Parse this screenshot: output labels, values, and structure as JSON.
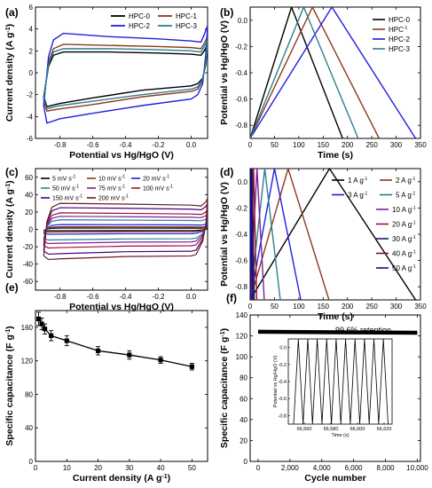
{
  "chart_data": [
    {
      "panel": "(a)",
      "type": "line",
      "xlabel": "Potential vs Hg/HgO (V)",
      "ylabel": "Current density (A g-1)",
      "xlim": [
        -0.95,
        0.1
      ],
      "ylim": [
        -6,
        6
      ],
      "xticks": [
        -0.8,
        -0.6,
        -0.4,
        -0.2,
        0.0
      ],
      "yticks": [
        -6,
        -4,
        -2,
        0,
        2,
        4,
        6
      ],
      "legend_position": "top-right",
      "series": [
        {
          "name": "HPC-0",
          "color": "#000000",
          "upper": [
            [
              -0.9,
              -2.2
            ],
            [
              -0.87,
              0.6
            ],
            [
              -0.84,
              1.6
            ],
            [
              -0.78,
              1.9
            ],
            [
              -0.5,
              1.9
            ],
            [
              -0.2,
              1.8
            ],
            [
              0.0,
              1.7
            ],
            [
              0.06,
              1.6
            ],
            [
              0.08,
              2.0
            ],
            [
              0.1,
              2.6
            ]
          ],
          "lower": [
            [
              0.1,
              2.6
            ],
            [
              0.09,
              0.8
            ],
            [
              0.07,
              -0.5
            ],
            [
              0.04,
              -1.0
            ],
            [
              0.0,
              -1.2
            ],
            [
              -0.3,
              -1.6
            ],
            [
              -0.6,
              -2.3
            ],
            [
              -0.8,
              -2.8
            ],
            [
              -0.88,
              -3.1
            ],
            [
              -0.9,
              -2.2
            ]
          ]
        },
        {
          "name": "HPC-1",
          "color": "#8b3a1e",
          "upper": [
            [
              -0.9,
              -2.6
            ],
            [
              -0.87,
              1.0
            ],
            [
              -0.84,
              2.2
            ],
            [
              -0.78,
              2.6
            ],
            [
              -0.5,
              2.5
            ],
            [
              -0.2,
              2.4
            ],
            [
              0.0,
              2.3
            ],
            [
              0.06,
              2.2
            ],
            [
              0.08,
              2.7
            ],
            [
              0.1,
              3.3
            ]
          ],
          "lower": [
            [
              0.1,
              3.3
            ],
            [
              0.09,
              1.2
            ],
            [
              0.07,
              -0.7
            ],
            [
              0.04,
              -1.5
            ],
            [
              0.0,
              -1.7
            ],
            [
              -0.3,
              -2.2
            ],
            [
              -0.6,
              -2.9
            ],
            [
              -0.8,
              -3.3
            ],
            [
              -0.88,
              -3.5
            ],
            [
              -0.9,
              -2.6
            ]
          ]
        },
        {
          "name": "HPC-2",
          "color": "#1f1fe0",
          "upper": [
            [
              -0.9,
              -3.0
            ],
            [
              -0.87,
              1.5
            ],
            [
              -0.84,
              3.0
            ],
            [
              -0.78,
              3.6
            ],
            [
              -0.5,
              3.3
            ],
            [
              -0.2,
              3.1
            ],
            [
              0.0,
              2.9
            ],
            [
              0.06,
              2.8
            ],
            [
              0.08,
              3.5
            ],
            [
              0.1,
              4.3
            ]
          ],
          "lower": [
            [
              0.1,
              4.3
            ],
            [
              0.09,
              1.8
            ],
            [
              0.07,
              -1.0
            ],
            [
              0.04,
              -2.0
            ],
            [
              0.0,
              -2.4
            ],
            [
              -0.3,
              -3.0
            ],
            [
              -0.6,
              -3.7
            ],
            [
              -0.8,
              -4.2
            ],
            [
              -0.88,
              -4.6
            ],
            [
              -0.9,
              -3.0
            ]
          ]
        },
        {
          "name": "HPC-3",
          "color": "#2e7f8c",
          "upper": [
            [
              -0.9,
              -2.4
            ],
            [
              -0.87,
              0.8
            ],
            [
              -0.84,
              1.9
            ],
            [
              -0.78,
              2.2
            ],
            [
              -0.5,
              2.2
            ],
            [
              -0.2,
              2.1
            ],
            [
              0.0,
              2.0
            ],
            [
              0.06,
              1.9
            ],
            [
              0.08,
              2.4
            ],
            [
              0.1,
              3.0
            ]
          ],
          "lower": [
            [
              0.1,
              3.0
            ],
            [
              0.09,
              1.0
            ],
            [
              0.07,
              -0.6
            ],
            [
              0.04,
              -1.3
            ],
            [
              0.0,
              -1.5
            ],
            [
              -0.3,
              -2.0
            ],
            [
              -0.6,
              -2.6
            ],
            [
              -0.8,
              -3.0
            ],
            [
              -0.88,
              -3.3
            ],
            [
              -0.9,
              -2.4
            ]
          ]
        }
      ]
    },
    {
      "panel": "(b)",
      "type": "line",
      "xlabel": "Time (s)",
      "ylabel": "Potential vs Hg/HgO (V)",
      "xlim": [
        0,
        350
      ],
      "ylim": [
        -0.9,
        0.1
      ],
      "xticks": [
        0,
        50,
        100,
        150,
        200,
        250,
        300,
        350
      ],
      "yticks": [
        -0.8,
        -0.6,
        -0.4,
        -0.2,
        0.0
      ],
      "legend_position": "top-right",
      "series": [
        {
          "name": "HPC-0",
          "color": "#000000",
          "peak_time": 85,
          "end_time": 190
        },
        {
          "name": "HPC-1",
          "color": "#8b3a1e",
          "peak_time": 128,
          "end_time": 265
        },
        {
          "name": "HPC-2",
          "color": "#1f1fe0",
          "peak_time": 168,
          "end_time": 340
        },
        {
          "name": "HPC-3",
          "color": "#2e7f8c",
          "peak_time": 110,
          "end_time": 222
        }
      ]
    },
    {
      "panel": "(c)",
      "type": "line",
      "xlabel": "Potential vs Hg/HgO (V)",
      "ylabel": "Current density (A g-1)",
      "xlim": [
        -0.95,
        0.1
      ],
      "ylim": [
        -70,
        70
      ],
      "xticks": [
        -0.8,
        -0.6,
        -0.4,
        -0.2,
        0.0
      ],
      "yticks": [
        -60,
        -40,
        -20,
        0,
        20,
        40,
        60
      ],
      "legend_position": "top",
      "series": [
        {
          "name": "5 mV s-1",
          "color": "#000000",
          "upper_plateau": 1.5,
          "lower_plateau": -1.5
        },
        {
          "name": "10 mV s-1",
          "color": "#8b3a1e",
          "upper_plateau": 3,
          "lower_plateau": -3
        },
        {
          "name": "20 mV s-1",
          "color": "#1f1fe0",
          "upper_plateau": 5.5,
          "lower_plateau": -5.5
        },
        {
          "name": "50 mV s-1",
          "color": "#2e7f8c",
          "upper_plateau": 11,
          "lower_plateau": -12
        },
        {
          "name": "75 mV s-1",
          "color": "#7a1fa2",
          "upper_plateau": 15,
          "lower_plateau": -16
        },
        {
          "name": "100 mV s-1",
          "color": "#a01030",
          "upper_plateau": 19,
          "lower_plateau": -21
        },
        {
          "name": "150 mV s-1",
          "color": "#4b0082",
          "upper_plateau": 25,
          "lower_plateau": -28
        },
        {
          "name": "200 mV s-1",
          "color": "#6b1a1a",
          "upper_plateau": 30,
          "lower_plateau": -34
        }
      ]
    },
    {
      "panel": "(d)",
      "type": "line",
      "xlabel": "Time (s)",
      "ylabel": "Potential vs Hg/HgO (V)",
      "xlim": [
        0,
        350
      ],
      "ylim": [
        -0.9,
        0.1
      ],
      "xticks": [
        0,
        50,
        100,
        150,
        200,
        250,
        300,
        350
      ],
      "yticks": [
        -0.8,
        -0.6,
        -0.4,
        -0.2,
        0.0
      ],
      "legend_position": "right",
      "series": [
        {
          "name": "1 A g-1",
          "color": "#000000",
          "peak_time": 163,
          "end_time": 340
        },
        {
          "name": "2 A g-1",
          "color": "#8b3a1e",
          "peak_time": 78,
          "end_time": 162
        },
        {
          "name": "3 A g-1",
          "color": "#1f1fe0",
          "peak_time": 50,
          "end_time": 104
        },
        {
          "name": "5 A g-1",
          "color": "#2e7f8c",
          "peak_time": 30,
          "end_time": 62
        },
        {
          "name": "10 A g-1",
          "color": "#7a1fa2",
          "peak_time": 14,
          "end_time": 29
        },
        {
          "name": "20 A g-1",
          "color": "#a01030",
          "peak_time": 7,
          "end_time": 13.5
        },
        {
          "name": "30 A g-1",
          "color": "#1a1a6b",
          "peak_time": 4.3,
          "end_time": 8.5
        },
        {
          "name": "40 A g-1",
          "color": "#6b1a1a",
          "peak_time": 3.0,
          "end_time": 6.0
        },
        {
          "name": "50 A g-1",
          "color": "#0a0aa0",
          "peak_time": 2.2,
          "end_time": 4.6
        }
      ]
    },
    {
      "panel": "(e)",
      "type": "line",
      "xlabel": "Current density (A g-1)",
      "ylabel": "Specific capacitance (F g-1)",
      "xlim": [
        0,
        55
      ],
      "ylim": [
        0,
        180
      ],
      "xticks": [
        0,
        10,
        20,
        30,
        40,
        50
      ],
      "yticks": [
        0,
        40,
        80,
        120,
        160
      ],
      "x": [
        1,
        2,
        3,
        5,
        10,
        20,
        30,
        40,
        50
      ],
      "y": [
        170,
        164,
        158,
        150,
        144,
        132,
        127,
        121,
        113
      ],
      "error": [
        8,
        7,
        6,
        6,
        6,
        5,
        5,
        4,
        4
      ]
    },
    {
      "panel": "(f)",
      "type": "line",
      "xlabel": "Cycle number",
      "ylabel": "Specific capacitance (F g-1)",
      "xlim": [
        -500,
        10200
      ],
      "ylim": [
        0,
        140
      ],
      "xticks": [
        0,
        2000,
        4000,
        6000,
        8000,
        10000
      ],
      "xtick_labels": [
        "0",
        "2,000",
        "4,000",
        "6,000",
        "8,000",
        "10,000"
      ],
      "yticks": [
        0,
        20,
        40,
        60,
        80,
        100,
        120,
        140
      ],
      "retention_line": {
        "start": 124,
        "end": 123
      },
      "annotation": "99.6% retention",
      "inset": {
        "xlabel": "Time (s)",
        "ylabel": "Potential vs Hg/HgO (V)",
        "xticks": [
          66560,
          66580,
          66600,
          66620
        ],
        "xtick_labels": [
          "66,560",
          "66,580",
          "66,600",
          "66,620"
        ],
        "yticks": [
          -0.8,
          -0.6,
          -0.4,
          -0.2,
          0.0
        ],
        "xlim": [
          66548,
          66626
        ],
        "ylim": [
          -0.9,
          0.1
        ],
        "cycles": 10,
        "cycle_start": 66552,
        "cycle_period": 7.1
      }
    }
  ]
}
